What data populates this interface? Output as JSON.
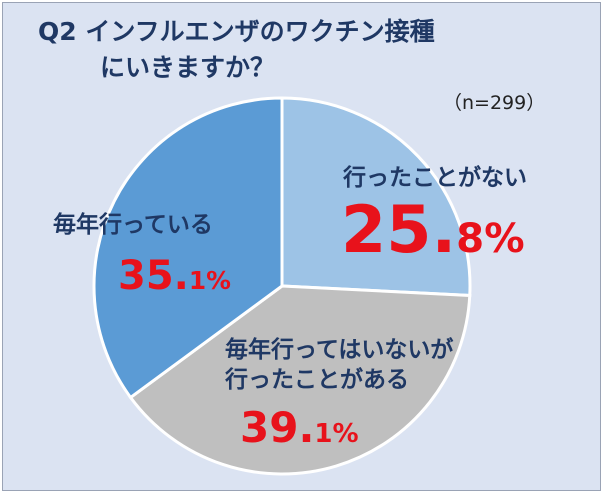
{
  "title_line1": "Q2  インフルエンザのワクチン接種",
  "title_line2": "にいきますか？",
  "sample_size": "（n=299）",
  "chart_data": {
    "type": "pie",
    "title": "Q2  インフルエンザのワクチン接種にいきますか？",
    "slices": [
      {
        "name": "行ったことがない",
        "value": 25.8,
        "label_int": "25.",
        "label_dec": "8%",
        "color": "#9dc3e6"
      },
      {
        "name": "毎年行ってはいないが行ったことがある",
        "name_line1": "毎年行ってはいないが",
        "name_line2": "行ったことがある",
        "value": 39.1,
        "label_int": "39.",
        "label_dec": "1%",
        "color": "#bfbfbf"
      },
      {
        "name": "毎年行っている",
        "value": 35.1,
        "label_int": "35.",
        "label_dec": "1%",
        "color": "#5b9bd5"
      }
    ],
    "start": "12 o'clock",
    "direction": "clockwise",
    "legend": "none (direct labels)"
  }
}
